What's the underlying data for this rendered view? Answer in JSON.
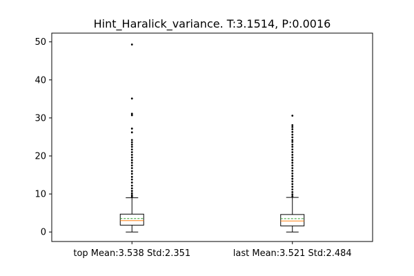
{
  "chart_data": {
    "type": "box",
    "title": "Hint_Haralick_variance. T:3.1514, P:0.0016",
    "xlabel": "",
    "ylabel": "",
    "ylim": [
      -2.5,
      52.3
    ],
    "yticks": [
      0,
      10,
      20,
      30,
      40,
      50
    ],
    "grid": false,
    "categories": [
      "top Mean:3.538 Std:2.351",
      "last Mean:3.521 Std:2.484"
    ],
    "boxes": [
      {
        "label": "top Mean:3.538 Std:2.351",
        "min": 0.0,
        "q1": 1.8,
        "median": 3.0,
        "mean": 3.538,
        "q3": 4.7,
        "whisker_high": 9.0,
        "fliers": [
          9.3,
          9.7,
          10.2,
          10.8,
          11.5,
          12.2,
          13.0,
          13.8,
          14.5,
          15.3,
          16.0,
          16.8,
          17.5,
          18.2,
          18.9,
          19.6,
          20.3,
          21.0,
          21.7,
          22.4,
          23.0,
          23.6,
          24.2,
          26.2,
          27.2,
          30.7,
          31.1,
          35.1,
          49.3
        ]
      },
      {
        "label": "last Mean:3.521 Std:2.484",
        "min": 0.0,
        "q1": 1.6,
        "median": 2.9,
        "mean": 3.521,
        "q3": 4.6,
        "whisker_high": 9.1,
        "fliers": [
          9.4,
          9.9,
          10.5,
          11.2,
          11.9,
          12.6,
          13.3,
          14.0,
          14.7,
          15.4,
          16.1,
          16.8,
          17.5,
          18.2,
          18.9,
          19.6,
          20.3,
          21.0,
          21.7,
          22.4,
          23.0,
          23.7,
          24.2,
          24.9,
          25.6,
          26.3,
          27.0,
          27.6,
          28.1,
          30.6
        ]
      }
    ],
    "colors": {
      "box": "#000000",
      "median": "#ff7f0e",
      "mean": "#2ca02c",
      "flier": "#000000",
      "axes": "#000000"
    }
  }
}
